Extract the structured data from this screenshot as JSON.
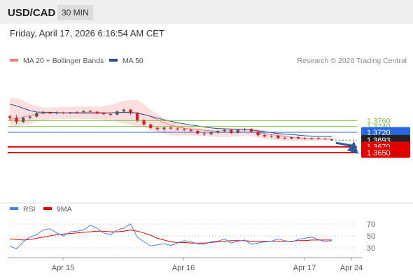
{
  "header": {
    "symbol": "USD/CAD",
    "timeframe": "30 MIN"
  },
  "date_line": "Friday, April 17, 2026 6:16:54 AM CET",
  "colors": {
    "bollinger": "#f08080",
    "ma50": "#2a4d8f",
    "green_level": "#7ac143",
    "blue_level": "#2a66e0",
    "red_level": "#e00000",
    "current": "#222222",
    "bull_candle": "#555555",
    "bear_candle": "#cc2222",
    "rsi": "#4a7fe0",
    "rsi_ma": "#e00000"
  },
  "chart_data": [
    {
      "type": "candlestick",
      "legend": [
        {
          "name": "MA 20 + Bollinger Bands",
          "color": "#f08080"
        },
        {
          "name": "MA 50",
          "color": "#2a4d8f"
        }
      ],
      "watermark": "Research © 2026 Trading Central",
      "x_ticks": [
        "Apr 15",
        "Apr 16",
        "Apr 17",
        "Apr 24"
      ],
      "levels": [
        {
          "value": 1.376,
          "label": "1.3760",
          "kind": "resistance-green"
        },
        {
          "value": 1.374,
          "label": "1.3740",
          "kind": "resistance-green"
        },
        {
          "value": 1.372,
          "label": "1.3720",
          "kind": "pivot-blue"
        },
        {
          "value": 1.3693,
          "label": "1.3693",
          "kind": "current"
        },
        {
          "value": 1.367,
          "label": "1.3670",
          "kind": "support-red"
        },
        {
          "value": 1.365,
          "label": "1.3650",
          "kind": "support-red"
        }
      ],
      "ylim": [
        1.3643,
        1.3862
      ],
      "ma20": [
        1.3765,
        1.3768,
        1.3772,
        1.3778,
        1.3782,
        1.3785,
        1.3787,
        1.3787,
        1.3787,
        1.3788,
        1.3789,
        1.3789,
        1.3789,
        1.3789,
        1.3788,
        1.3787,
        1.3788,
        1.3788,
        1.3787,
        1.3786,
        1.3782,
        1.3774,
        1.3764,
        1.3753,
        1.3745,
        1.3739,
        1.3734,
        1.3731,
        1.3729,
        1.3727,
        1.3725,
        1.3723,
        1.3721,
        1.3721,
        1.3721,
        1.3721,
        1.372,
        1.3718,
        1.3715,
        1.3712,
        1.3709,
        1.3706,
        1.3703,
        1.37,
        1.3698,
        1.3697,
        1.3697,
        1.3697,
        1.3697
      ],
      "bb_upper": [
        1.384,
        1.3838,
        1.383,
        1.3818,
        1.381,
        1.3805,
        1.3805,
        1.3806,
        1.3807,
        1.3808,
        1.3808,
        1.3808,
        1.3808,
        1.3809,
        1.381,
        1.3815,
        1.3821,
        1.3828,
        1.3832,
        1.3832,
        1.3818,
        1.3797,
        1.3783,
        1.3769,
        1.3759,
        1.3752,
        1.3745,
        1.3739,
        1.3735,
        1.3732,
        1.373,
        1.3731,
        1.3733,
        1.3734,
        1.3735,
        1.3734,
        1.3734,
        1.3731,
        1.3726,
        1.3721,
        1.3716,
        1.3711,
        1.3707,
        1.3704,
        1.3702,
        1.37,
        1.37,
        1.3699,
        1.3699
      ],
      "bb_lower": [
        1.3738,
        1.374,
        1.3744,
        1.375,
        1.3756,
        1.376,
        1.3764,
        1.3766,
        1.3766,
        1.3767,
        1.3767,
        1.3766,
        1.3766,
        1.3765,
        1.3763,
        1.3759,
        1.3755,
        1.375,
        1.3745,
        1.3738,
        1.3738,
        1.3728,
        1.372,
        1.3714,
        1.371,
        1.3709,
        1.3709,
        1.3709,
        1.3708,
        1.3707,
        1.3705,
        1.3704,
        1.3703,
        1.3704,
        1.3706,
        1.3707,
        1.3706,
        1.3702,
        1.3698,
        1.3695,
        1.3693,
        1.3691,
        1.369,
        1.369,
        1.369,
        1.3691,
        1.3691,
        1.3692,
        1.3692
      ],
      "ma50": [
        1.3817,
        1.3811,
        1.3803,
        1.3795,
        1.379,
        1.3789,
        1.3789,
        1.3788,
        1.3787,
        1.3787,
        1.3786,
        1.3786,
        1.3786,
        1.3786,
        1.3786,
        1.3787,
        1.3788,
        1.3789,
        1.3789,
        1.3786,
        1.3781,
        1.3775,
        1.3769,
        1.3763,
        1.3758,
        1.3753,
        1.3749,
        1.3745,
        1.3742,
        1.3738,
        1.3735,
        1.3733,
        1.3732,
        1.3731,
        1.373,
        1.3729,
        1.3728,
        1.3725,
        1.3722,
        1.3719,
        1.3716,
        1.3714,
        1.3712,
        1.371,
        1.3708,
        1.3707,
        1.3706,
        1.3705,
        1.3704
      ],
      "ohlc": [
        [
          1.3775,
          1.3781,
          1.3762,
          1.377
        ],
        [
          1.377,
          1.3779,
          1.3748,
          1.3756
        ],
        [
          1.3756,
          1.3774,
          1.3752,
          1.377
        ],
        [
          1.377,
          1.3777,
          1.3765,
          1.3774
        ],
        [
          1.3774,
          1.3789,
          1.3771,
          1.3786
        ],
        [
          1.3786,
          1.3794,
          1.3782,
          1.3789
        ],
        [
          1.3789,
          1.3791,
          1.3782,
          1.3785
        ],
        [
          1.3785,
          1.3792,
          1.3782,
          1.3788
        ],
        [
          1.3788,
          1.3791,
          1.3783,
          1.3786
        ],
        [
          1.3786,
          1.379,
          1.3783,
          1.3787
        ],
        [
          1.3787,
          1.3793,
          1.3784,
          1.3789
        ],
        [
          1.3789,
          1.3796,
          1.3787,
          1.3793
        ],
        [
          1.3793,
          1.3797,
          1.3788,
          1.3791
        ],
        [
          1.3791,
          1.3793,
          1.3782,
          1.3785
        ],
        [
          1.3785,
          1.3788,
          1.3779,
          1.3783
        ],
        [
          1.3783,
          1.3787,
          1.3776,
          1.3781
        ],
        [
          1.3781,
          1.3795,
          1.3779,
          1.3792
        ],
        [
          1.3792,
          1.3802,
          1.3786,
          1.3798
        ],
        [
          1.3798,
          1.38,
          1.3781,
          1.3787
        ],
        [
          1.3787,
          1.379,
          1.3755,
          1.3762
        ],
        [
          1.3762,
          1.3765,
          1.3742,
          1.3747
        ],
        [
          1.3747,
          1.3751,
          1.373,
          1.3735
        ],
        [
          1.3735,
          1.374,
          1.3725,
          1.3731
        ],
        [
          1.3731,
          1.3739,
          1.3724,
          1.3736
        ],
        [
          1.3736,
          1.3742,
          1.3728,
          1.3733
        ],
        [
          1.3733,
          1.3737,
          1.3726,
          1.373
        ],
        [
          1.373,
          1.3734,
          1.3724,
          1.3728
        ],
        [
          1.3728,
          1.3733,
          1.372,
          1.3725
        ],
        [
          1.3725,
          1.3728,
          1.3712,
          1.3716
        ],
        [
          1.3716,
          1.3721,
          1.3708,
          1.3713
        ],
        [
          1.3713,
          1.3722,
          1.371,
          1.3719
        ],
        [
          1.3719,
          1.3727,
          1.3715,
          1.3724
        ],
        [
          1.3724,
          1.3731,
          1.372,
          1.3728
        ],
        [
          1.3728,
          1.3732,
          1.3714,
          1.3718
        ],
        [
          1.3718,
          1.3731,
          1.3716,
          1.3728
        ],
        [
          1.3728,
          1.3734,
          1.3724,
          1.3731
        ],
        [
          1.3731,
          1.3734,
          1.3719,
          1.3722
        ],
        [
          1.3722,
          1.3726,
          1.3706,
          1.371
        ],
        [
          1.371,
          1.3716,
          1.3702,
          1.3706
        ],
        [
          1.3706,
          1.3712,
          1.3701,
          1.3708
        ],
        [
          1.3708,
          1.3712,
          1.3697,
          1.37
        ],
        [
          1.37,
          1.3704,
          1.3695,
          1.3698
        ],
        [
          1.3698,
          1.3705,
          1.3696,
          1.3703
        ],
        [
          1.3703,
          1.3707,
          1.3697,
          1.3699
        ],
        [
          1.3699,
          1.3703,
          1.3695,
          1.3697
        ],
        [
          1.3697,
          1.3702,
          1.3695,
          1.37
        ],
        [
          1.37,
          1.3703,
          1.3696,
          1.3698
        ],
        [
          1.3698,
          1.3701,
          1.3694,
          1.3696
        ],
        [
          1.3696,
          1.3698,
          1.369,
          1.3693
        ]
      ]
    },
    {
      "type": "line",
      "legend": [
        {
          "name": "RSI",
          "color": "#4a7fe0"
        },
        {
          "name": "9MA",
          "color": "#e00000"
        }
      ],
      "y_ticks": [
        "70",
        "50",
        "30"
      ],
      "ylim": [
        13,
        82
      ],
      "rsi": [
        33,
        28,
        40,
        48,
        52,
        60,
        62,
        55,
        50,
        57,
        58,
        60,
        68,
        63,
        55,
        52,
        60,
        63,
        70,
        48,
        40,
        33,
        35,
        37,
        34,
        38,
        42,
        40,
        37,
        36,
        40,
        41,
        45,
        38,
        41,
        43,
        36,
        38,
        40,
        41,
        45,
        42,
        40,
        44,
        46,
        48,
        44,
        40,
        42
      ],
      "rsi_ma": [
        45,
        44,
        43,
        44,
        46,
        48,
        50,
        52,
        53,
        54,
        55,
        56,
        57,
        58,
        58,
        57,
        57,
        58,
        60,
        58,
        55,
        51,
        46,
        43,
        40,
        39,
        39,
        38,
        38,
        38,
        39,
        40,
        41,
        42,
        42,
        42,
        41,
        41,
        41,
        41,
        41,
        41,
        41,
        42,
        42,
        43,
        43,
        43,
        43
      ]
    }
  ]
}
